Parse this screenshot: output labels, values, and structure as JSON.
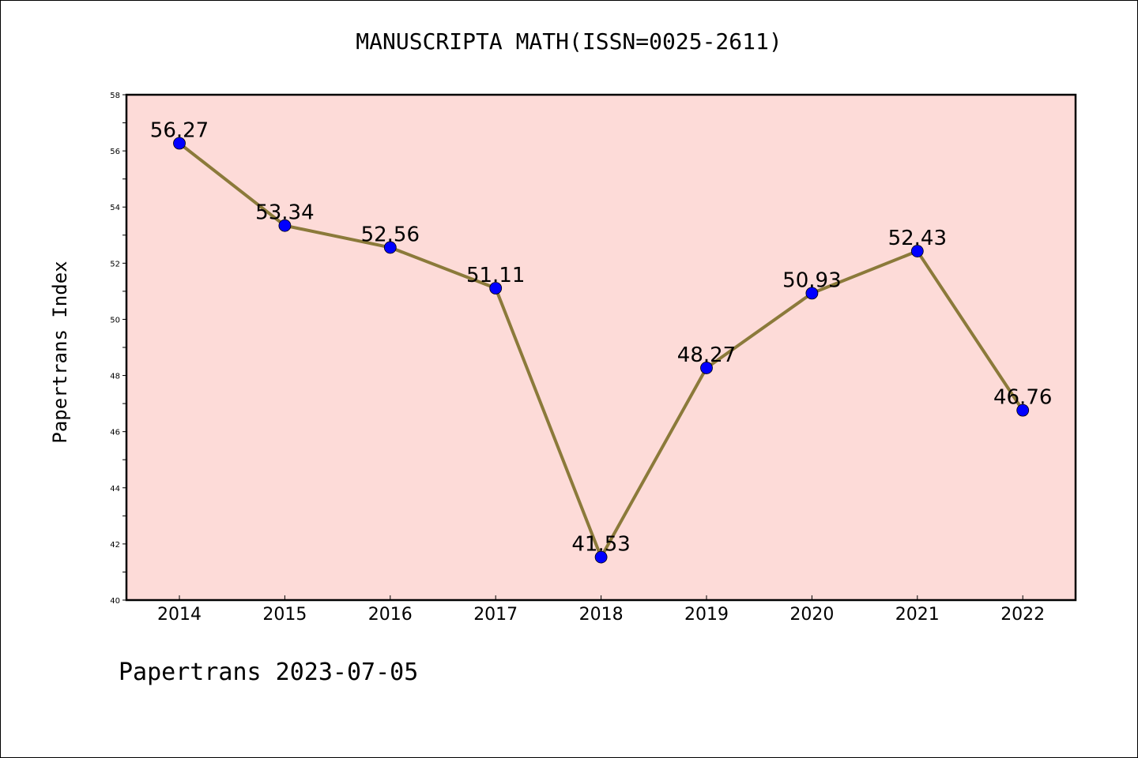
{
  "title": "MANUSCRIPTA MATH(ISSN=0025-2611)",
  "footer": "Papertrans 2023-07-05",
  "colors": {
    "plot_background": "#fddbd8",
    "line": "#8b7a3a",
    "marker": "#0000ff",
    "border": "#000000"
  },
  "chart_data": {
    "type": "line",
    "title": "MANUSCRIPTA MATH(ISSN=0025-2611)",
    "xlabel": "",
    "ylabel": "Papertrans Index",
    "ylim": [
      40,
      58
    ],
    "yticks": [
      40,
      42,
      44,
      46,
      48,
      50,
      52,
      54,
      56,
      58
    ],
    "grid": false,
    "legend": "none",
    "categories": [
      "2014",
      "2015",
      "2016",
      "2017",
      "2018",
      "2019",
      "2020",
      "2021",
      "2022"
    ],
    "series": [
      {
        "values": [
          56.27,
          53.34,
          52.56,
          51.11,
          41.53,
          48.27,
          50.93,
          52.43,
          46.76
        ],
        "labels": [
          "56.27",
          "53.34",
          "52.56",
          "51.11",
          "41.53",
          "48.27",
          "50.93",
          "52.43",
          "46.76"
        ]
      }
    ]
  }
}
